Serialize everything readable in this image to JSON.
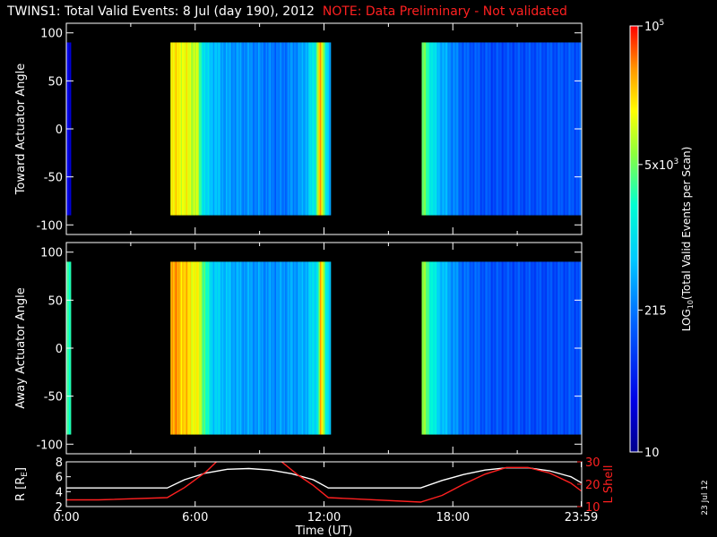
{
  "header": {
    "title": "TWINS1: Total Valid Events:  8 Jul (day 190), 2012",
    "note": "NOTE: Data Preliminary - Not validated"
  },
  "footer": {
    "date_stamp": "23 Jul 12"
  },
  "colors": {
    "background": "#000000",
    "axis": "#ffffff",
    "note": "#ff2020",
    "l_shell": "#ff2020",
    "radius": "#ffffff"
  },
  "chart_data": [
    {
      "type": "heatmap",
      "panel": "top",
      "ylabel": "Toward Actuator Angle",
      "ylim": [
        -110,
        110
      ],
      "yticks": [
        100,
        50,
        0,
        -50,
        -100
      ],
      "xlim": [
        0,
        24
      ],
      "colorscale": "log",
      "coverage_hours": [
        [
          0,
          0.2
        ],
        [
          4.85,
          12.3
        ],
        [
          16.55,
          23.95
        ]
      ],
      "profile": [
        {
          "t": 0.0,
          "v": 30
        },
        {
          "t": 0.2,
          "v": 30
        },
        {
          "t": 4.85,
          "v": 20000
        },
        {
          "t": 5.4,
          "v": 15000
        },
        {
          "t": 6.1,
          "v": 9000
        },
        {
          "t": 6.3,
          "v": 2000
        },
        {
          "t": 6.5,
          "v": 800
        },
        {
          "t": 7.5,
          "v": 350
        },
        {
          "t": 9.0,
          "v": 250
        },
        {
          "t": 10.0,
          "v": 200
        },
        {
          "t": 11.0,
          "v": 350
        },
        {
          "t": 11.6,
          "v": 1500
        },
        {
          "t": 11.8,
          "v": 40000
        },
        {
          "t": 12.0,
          "v": 4000
        },
        {
          "t": 12.3,
          "v": 300
        },
        {
          "t": 16.55,
          "v": 6000
        },
        {
          "t": 17.3,
          "v": 600
        },
        {
          "t": 18.5,
          "v": 150
        },
        {
          "t": 20.0,
          "v": 110
        },
        {
          "t": 22.0,
          "v": 120
        },
        {
          "t": 23.95,
          "v": 130
        }
      ]
    },
    {
      "type": "heatmap",
      "panel": "middle",
      "ylabel": "Away Actuator Angle",
      "ylim": [
        -110,
        110
      ],
      "yticks": [
        100,
        50,
        0,
        -50,
        -100
      ],
      "xlim": [
        0,
        24
      ],
      "colorscale": "log",
      "coverage_hours": [
        [
          0,
          0.2
        ],
        [
          4.85,
          12.3
        ],
        [
          16.55,
          23.95
        ]
      ],
      "profile": [
        {
          "t": 0.0,
          "v": 3000
        },
        {
          "t": 0.2,
          "v": 3000
        },
        {
          "t": 4.85,
          "v": 40000
        },
        {
          "t": 5.5,
          "v": 25000
        },
        {
          "t": 6.2,
          "v": 12000
        },
        {
          "t": 6.5,
          "v": 2500
        },
        {
          "t": 6.8,
          "v": 800
        },
        {
          "t": 8.0,
          "v": 400
        },
        {
          "t": 9.5,
          "v": 300
        },
        {
          "t": 11.0,
          "v": 400
        },
        {
          "t": 11.7,
          "v": 1200
        },
        {
          "t": 11.85,
          "v": 30000
        },
        {
          "t": 12.05,
          "v": 3000
        },
        {
          "t": 12.3,
          "v": 500
        },
        {
          "t": 16.55,
          "v": 8000
        },
        {
          "t": 17.3,
          "v": 800
        },
        {
          "t": 18.5,
          "v": 180
        },
        {
          "t": 20.0,
          "v": 120
        },
        {
          "t": 22.0,
          "v": 110
        },
        {
          "t": 23.95,
          "v": 120
        }
      ]
    },
    {
      "type": "line",
      "panel": "bottom",
      "ylabel": "R [R",
      "ylabel_sub": "E",
      "ylabel_close": "]",
      "ylim": [
        2,
        8
      ],
      "yticks": [
        8,
        6,
        4,
        2
      ],
      "y2label": "L Shell",
      "y2lim": [
        10,
        30
      ],
      "y2ticks": [
        30,
        20,
        10
      ],
      "xlabel": "Time (UT)",
      "xlim": [
        0,
        24
      ],
      "xtick_labels": [
        "0:00",
        "6:00",
        "12:00",
        "18:00",
        "23:59"
      ],
      "xtick_values": [
        0,
        6,
        12,
        18,
        23.98
      ],
      "series": [
        {
          "axis": "left",
          "x": [
            0,
            4.7,
            5.5,
            6.5,
            7.5,
            8.5,
            9.5,
            10.5,
            11.5,
            12.2,
            16.5,
            17.5,
            18.5,
            19.5,
            20.5,
            21.5,
            22.5,
            23.5,
            23.98
          ],
          "y": [
            4.5,
            4.5,
            5.6,
            6.5,
            7.0,
            7.1,
            6.9,
            6.4,
            5.6,
            4.5,
            4.5,
            5.5,
            6.3,
            6.9,
            7.2,
            7.2,
            6.8,
            6.0,
            5.2
          ]
        },
        {
          "axis": "right",
          "x": [
            0,
            1.5,
            4.7,
            5.5,
            6.5,
            7.1,
            9.9,
            10.8,
            11.5,
            12.2,
            16.5,
            17.5,
            18.5,
            19.5,
            20.5,
            21.5,
            22.5,
            23.5,
            23.98
          ],
          "y": [
            13,
            13,
            14,
            18.5,
            25.5,
            31,
            31,
            24,
            19.5,
            14,
            12,
            15,
            20,
            24.5,
            27.5,
            27.5,
            25,
            20.5,
            17
          ]
        }
      ]
    },
    {
      "type": "colorbar",
      "label": "LOG",
      "label_sub": "10",
      "label_tail": "(Total Valid Events per Scan)",
      "range": [
        10,
        100000
      ],
      "ticks": [
        {
          "value": 100000,
          "base": "10",
          "sup": "5"
        },
        {
          "value": 5000,
          "base": "5x10",
          "sup": "3"
        },
        {
          "value": 215,
          "base": "215",
          "sup": ""
        },
        {
          "value": 10,
          "base": "10",
          "sup": ""
        }
      ]
    }
  ]
}
